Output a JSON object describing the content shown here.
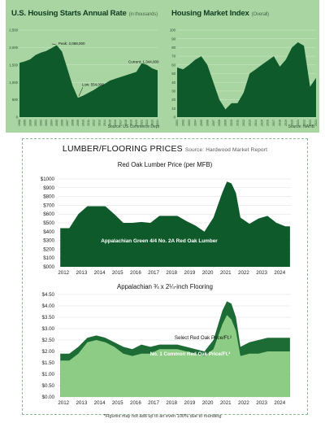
{
  "colors": {
    "panel": "#a8d5a2",
    "dark_green": "#0f5a2a",
    "mid_green": "#1d6b35",
    "light_green": "#8ccc85",
    "text_dark": "#0f3d20"
  },
  "housing_starts": {
    "title": "U.S. Housing Starts Annual Rate",
    "unit": "(in thousands)",
    "source": "Source: US Commerce Dept",
    "annotations": {
      "peak": "Peak: 2,068,000",
      "low": "Low: 554,000",
      "current": "Current: 1,344,000"
    }
  },
  "housing_market": {
    "title": "Housing Market Index",
    "unit": "(Overall)",
    "source": "Source: NAHB"
  },
  "lumber": {
    "title": "LUMBER/FLOORING PRICES",
    "source": "Source: Hardwood Market Report",
    "footnote": "*Figures may not add up to an even 100% due to rounding"
  },
  "chart_data": [
    {
      "type": "area",
      "title": "U.S. Housing Starts Annual Rate",
      "ylim": [
        0,
        2500
      ],
      "yticks": [
        0,
        500,
        1000,
        1500,
        2000,
        2500
      ],
      "ytick_labels": [
        "0",
        "500",
        "1,000",
        "1,500",
        "2,000",
        "2,500"
      ],
      "x": [
        1998,
        1999,
        2000,
        2001,
        2002,
        2003,
        2004,
        2005,
        2006,
        2007,
        2008,
        2009,
        2010,
        2011,
        2012,
        2013,
        2014,
        2015,
        2016,
        2017,
        2018,
        2019,
        2020,
        2021,
        2022,
        2023,
        2024
      ],
      "x_labels": [
        "1998",
        "1999",
        "2000",
        "2001",
        "2002",
        "2003",
        "2004",
        "2005",
        "2006",
        "2007",
        "2008",
        "2009",
        "2010",
        "2011",
        "2012",
        "2013",
        "2014",
        "2015",
        "2016",
        "2017",
        "2018",
        "2019",
        "2020",
        "2021",
        "2022",
        "2023",
        "2024"
      ],
      "values": [
        1560,
        1600,
        1660,
        1780,
        1850,
        1900,
        1980,
        2068,
        1880,
        1400,
        900,
        554,
        620,
        700,
        780,
        880,
        950,
        1050,
        1100,
        1150,
        1200,
        1250,
        1300,
        1550,
        1500,
        1400,
        1344
      ],
      "series": [
        {
          "name": "",
          "values": [
            1560,
            1600,
            1660,
            1780,
            1850,
            1900,
            1980,
            2068,
            1880,
            1400,
            900,
            554,
            620,
            700,
            780,
            880,
            950,
            1050,
            1100,
            1150,
            1200,
            1250,
            1300,
            1550,
            1500,
            1400,
            1344
          ]
        }
      ]
    },
    {
      "type": "area",
      "title": "Housing Market Index",
      "ylim": [
        0,
        100
      ],
      "yticks": [
        0,
        10,
        20,
        30,
        40,
        50,
        60,
        70,
        80,
        90,
        100
      ],
      "ytick_labels": [
        "0",
        "10",
        "20",
        "30",
        "40",
        "50",
        "60",
        "70",
        "80",
        "90",
        "100"
      ],
      "x": [
        2001,
        2002,
        2003,
        2004,
        2005,
        2006,
        2007,
        2008,
        2009,
        2010,
        2011,
        2012,
        2013,
        2014,
        2015,
        2016,
        2017,
        2018,
        2019,
        2020,
        2021,
        2022,
        2023,
        2024
      ],
      "x_labels": [
        "2001",
        "2002",
        "2003",
        "2004",
        "2005",
        "2006",
        "2007",
        "2008",
        "2009",
        "2010",
        "2011",
        "2012",
        "2013",
        "2014",
        "2015",
        "2016",
        "2017",
        "2018",
        "2019",
        "2020",
        "2021",
        "2022",
        "2023",
        "2024"
      ],
      "values": [
        57,
        55,
        60,
        66,
        70,
        60,
        40,
        20,
        9,
        16,
        16,
        28,
        50,
        55,
        60,
        65,
        70,
        58,
        66,
        80,
        86,
        82,
        35,
        45
      ],
      "series": [
        {
          "name": "",
          "values": [
            57,
            55,
            60,
            66,
            70,
            60,
            40,
            20,
            9,
            16,
            16,
            28,
            50,
            55,
            60,
            65,
            70,
            58,
            66,
            80,
            86,
            82,
            35,
            45
          ]
        }
      ]
    },
    {
      "type": "area",
      "title": "Red Oak Lumber Price (per MFB)",
      "ylim": [
        0,
        1000
      ],
      "yticks": [
        0,
        100,
        200,
        300,
        400,
        500,
        600,
        700,
        800,
        900,
        1000
      ],
      "ytick_labels": [
        "$000",
        "$100",
        "$200",
        "$300",
        "$400",
        "$500",
        "$600",
        "$700",
        "$800",
        "$900",
        "$1000"
      ],
      "x_labels": [
        "2012",
        "2013",
        "2014",
        "2015",
        "2016",
        "2017",
        "2018",
        "2019",
        "2020",
        "2021",
        "2022",
        "2023",
        "2024"
      ],
      "x": [
        2012.0,
        2012.5,
        2013.0,
        2013.5,
        2014.0,
        2014.5,
        2015.0,
        2015.5,
        2016.0,
        2016.5,
        2017.0,
        2017.5,
        2018.0,
        2018.5,
        2019.0,
        2019.5,
        2020.0,
        2020.5,
        2021.0,
        2021.25,
        2021.5,
        2021.75,
        2022.0,
        2022.5,
        2023.0,
        2023.5,
        2024.0,
        2024.5,
        2024.75
      ],
      "values": [
        440,
        440,
        600,
        690,
        690,
        690,
        600,
        500,
        500,
        510,
        500,
        580,
        580,
        580,
        520,
        470,
        400,
        560,
        850,
        970,
        950,
        840,
        560,
        490,
        550,
        580,
        500,
        460,
        460
      ],
      "series": [
        {
          "name": "Appalachian Green 4/4 No. 2A Red Oak Lumber",
          "values": [
            440,
            440,
            600,
            690,
            690,
            690,
            600,
            500,
            500,
            510,
            500,
            580,
            580,
            580,
            520,
            470,
            400,
            560,
            850,
            970,
            950,
            840,
            560,
            490,
            550,
            580,
            500,
            460,
            460
          ]
        }
      ]
    },
    {
      "type": "area",
      "title": "Appalachian ¾ x 2¼-inch Flooring",
      "ylim": [
        0,
        4.5
      ],
      "yticks": [
        0,
        0.5,
        1.0,
        1.5,
        2.0,
        2.5,
        3.0,
        3.5,
        4.0,
        4.5
      ],
      "ytick_labels": [
        "$0.00",
        "$0.50",
        "$1.00",
        "$1.50",
        "$2.00",
        "$2.50",
        "$3.00",
        "$3.50",
        "$4.00",
        "$4.50"
      ],
      "x_labels": [
        "2012",
        "2013",
        "2014",
        "2015",
        "2016",
        "2017",
        "2018",
        "2019",
        "2020",
        "2021",
        "2022",
        "2023",
        "2024"
      ],
      "x": [
        2012.0,
        2012.5,
        2013.0,
        2013.5,
        2014.0,
        2014.5,
        2015.0,
        2015.5,
        2016.0,
        2016.5,
        2017.0,
        2017.5,
        2018.0,
        2018.5,
        2019.0,
        2019.5,
        2020.0,
        2020.5,
        2021.0,
        2021.25,
        2021.5,
        2021.75,
        2022.0,
        2022.5,
        2023.0,
        2023.5,
        2024.0,
        2024.5,
        2024.75
      ],
      "series": [
        {
          "name": "Select Red Oak Price/Ft.²",
          "values": [
            1.9,
            1.9,
            2.2,
            2.6,
            2.7,
            2.6,
            2.4,
            2.2,
            2.1,
            2.3,
            2.2,
            2.3,
            2.3,
            2.3,
            2.2,
            2.1,
            2.0,
            2.5,
            3.8,
            4.2,
            4.1,
            3.5,
            2.2,
            2.4,
            2.5,
            2.6,
            2.6,
            2.6,
            2.6
          ]
        },
        {
          "name": "No. 1 Common Red Oak Price/Ft.²",
          "values": [
            1.6,
            1.6,
            1.9,
            2.4,
            2.5,
            2.4,
            2.2,
            1.9,
            1.8,
            1.9,
            1.9,
            2.1,
            2.1,
            2.1,
            2.0,
            1.9,
            1.8,
            2.1,
            3.2,
            3.6,
            3.4,
            2.9,
            1.8,
            1.9,
            1.9,
            2.0,
            2.0,
            2.0,
            2.0
          ]
        }
      ]
    }
  ]
}
